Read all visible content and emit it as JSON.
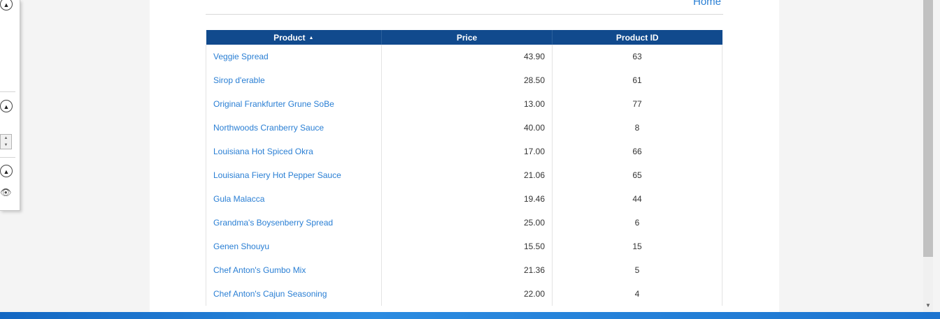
{
  "nav": {
    "home_link": "Home"
  },
  "table": {
    "columns": [
      "Product",
      "Price",
      "Product ID"
    ],
    "sort_icon": "▲",
    "rows": [
      {
        "product": "Veggie Spread",
        "price": "43.90",
        "id": "63"
      },
      {
        "product": "Sirop d'erable",
        "price": "28.50",
        "id": "61"
      },
      {
        "product": "Original Frankfurter Grune SoBe",
        "price": "13.00",
        "id": "77"
      },
      {
        "product": "Northwoods Cranberry Sauce",
        "price": "40.00",
        "id": "8"
      },
      {
        "product": "Louisiana Hot Spiced Okra",
        "price": "17.00",
        "id": "66"
      },
      {
        "product": "Louisiana Fiery Hot Pepper Sauce",
        "price": "21.06",
        "id": "65"
      },
      {
        "product": "Gula Malacca",
        "price": "19.46",
        "id": "44"
      },
      {
        "product": "Grandma's Boysenberry Spread",
        "price": "25.00",
        "id": "6"
      },
      {
        "product": "Genen Shouyu",
        "price": "15.50",
        "id": "15"
      },
      {
        "product": "Chef Anton's Gumbo Mix",
        "price": "21.36",
        "id": "5"
      },
      {
        "product": "Chef Anton's Cajun Seasoning",
        "price": "22.00",
        "id": "4"
      }
    ]
  },
  "side_panel": {
    "icons": [
      "collapse-up-icon",
      "collapse-up-icon",
      "spinner-arrows-icon",
      "collapse-up-icon",
      "eye-icon"
    ]
  },
  "colors": {
    "header_bg": "#114a8d",
    "link": "#2a7fd4",
    "desktop": "#1f7fd0"
  }
}
